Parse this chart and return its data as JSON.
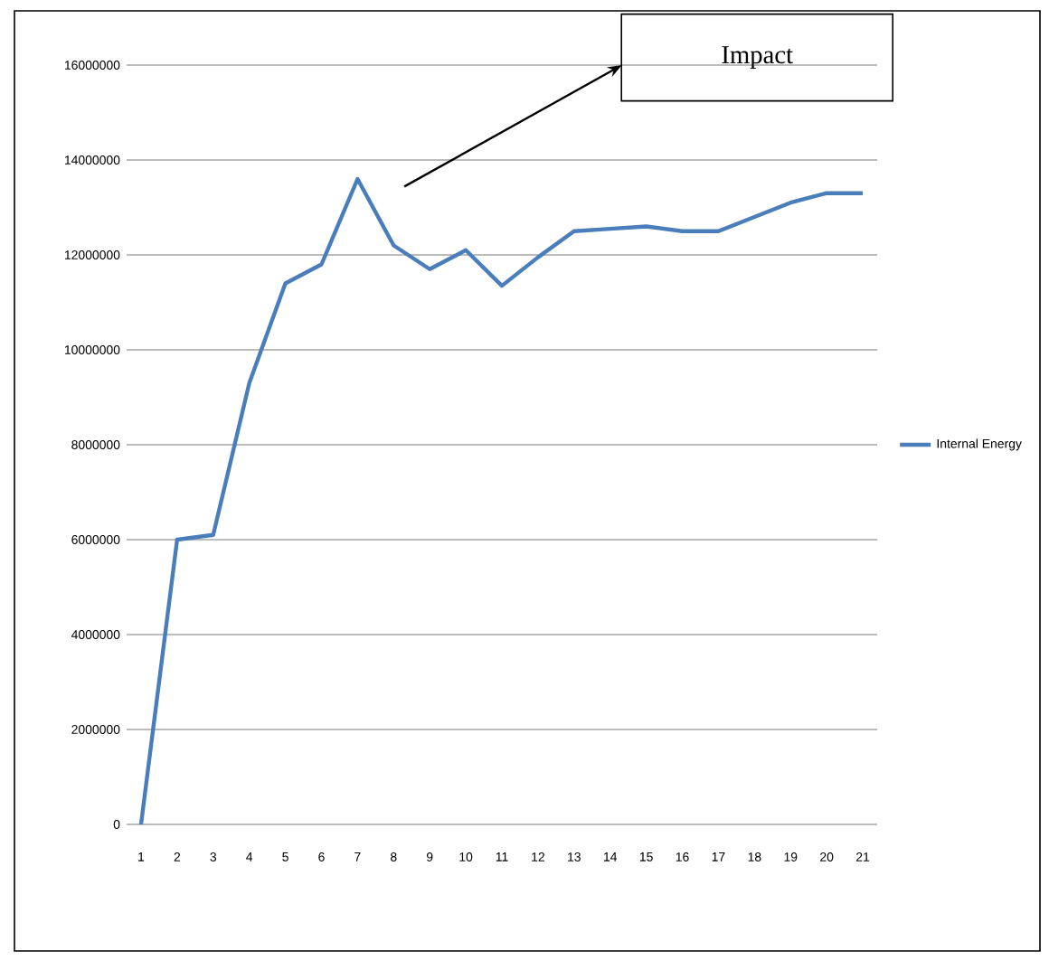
{
  "chart_data": {
    "type": "line",
    "categories": [
      "1",
      "2",
      "3",
      "4",
      "5",
      "6",
      "7",
      "8",
      "9",
      "10",
      "11",
      "12",
      "13",
      "14",
      "15",
      "16",
      "17",
      "18",
      "19",
      "20",
      "21"
    ],
    "series": [
      {
        "name": "Internal Energy",
        "color": "#4a7ebb",
        "values": [
          0,
          6000000,
          6100000,
          9300000,
          11400000,
          11800000,
          13600000,
          12200000,
          11700000,
          12100000,
          11350000,
          11950000,
          12500000,
          12550000,
          12600000,
          12500000,
          12500000,
          12800000,
          13100000,
          13300000,
          13300000
        ]
      }
    ],
    "ylim": [
      0,
      16000000
    ],
    "yticks": [
      0,
      2000000,
      4000000,
      6000000,
      8000000,
      10000000,
      12000000,
      14000000,
      16000000
    ],
    "grid": "y",
    "legend": "right",
    "marker": "none",
    "line_style": "solid",
    "annotations": [
      "Impact"
    ]
  }
}
